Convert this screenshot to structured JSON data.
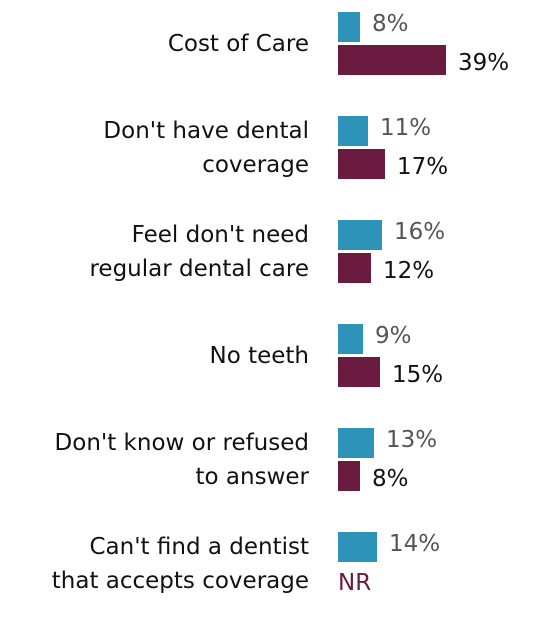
{
  "chart_data": {
    "type": "bar",
    "orientation": "horizontal",
    "categories": [
      "Cost of Care",
      "Don't have dental coverage",
      "Feel don't need regular dental care",
      "No teeth",
      "Don't know or refused to answer",
      "Can't find a dentist that accepts coverage"
    ],
    "category_lines": [
      [
        "Cost of Care"
      ],
      [
        "Don't have dental",
        "coverage"
      ],
      [
        "Feel don't need",
        "regular dental care"
      ],
      [
        "No teeth"
      ],
      [
        "Don't know or refused",
        "to answer"
      ],
      [
        "Can't find a dentist",
        "that accepts coverage"
      ]
    ],
    "series": [
      {
        "color": "#2e93b8",
        "label_color": "#555555",
        "values": [
          8,
          11,
          16,
          9,
          13,
          14
        ],
        "labels": [
          "8%",
          "11%",
          "16%",
          "9%",
          "13%",
          "14%"
        ]
      },
      {
        "color": "#6b1a40",
        "label_color": "#111111",
        "values": [
          39,
          17,
          12,
          15,
          8,
          null
        ],
        "labels": [
          "39%",
          "17%",
          "12%",
          "15%",
          "8%",
          "NR"
        ]
      }
    ],
    "xlim": [
      0,
      39
    ],
    "grid": false,
    "legend": "none"
  }
}
